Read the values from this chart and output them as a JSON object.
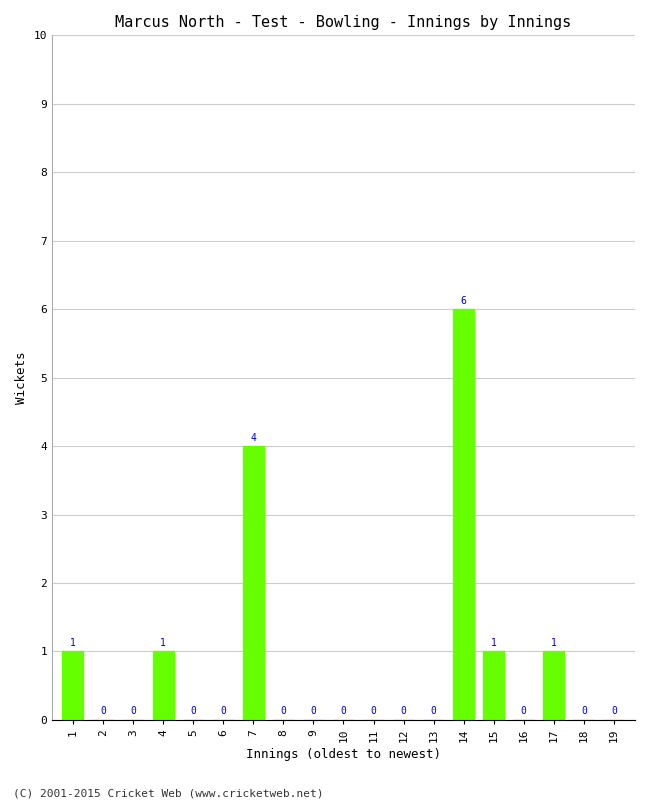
{
  "title": "Marcus North - Test - Bowling - Innings by Innings",
  "xlabel": "Innings (oldest to newest)",
  "ylabel": "Wickets",
  "categories": [
    1,
    2,
    3,
    4,
    5,
    6,
    7,
    8,
    9,
    10,
    11,
    12,
    13,
    14,
    15,
    16,
    17,
    18,
    19
  ],
  "values": [
    1,
    0,
    0,
    1,
    0,
    0,
    4,
    0,
    0,
    0,
    0,
    0,
    0,
    6,
    1,
    0,
    1,
    0,
    0
  ],
  "bar_color": "#66ff00",
  "bar_edge_color": "#66ff00",
  "label_color": "#0000cc",
  "background_color": "#ffffff",
  "grid_color": "#cccccc",
  "ylim": [
    0,
    10
  ],
  "yticks": [
    0,
    1,
    2,
    3,
    4,
    5,
    6,
    7,
    8,
    9,
    10
  ],
  "title_fontsize": 11,
  "axis_label_fontsize": 9,
  "tick_fontsize": 8,
  "value_label_fontsize": 7,
  "footer": "(C) 2001-2015 Cricket Web (www.cricketweb.net)",
  "footer_fontsize": 8
}
